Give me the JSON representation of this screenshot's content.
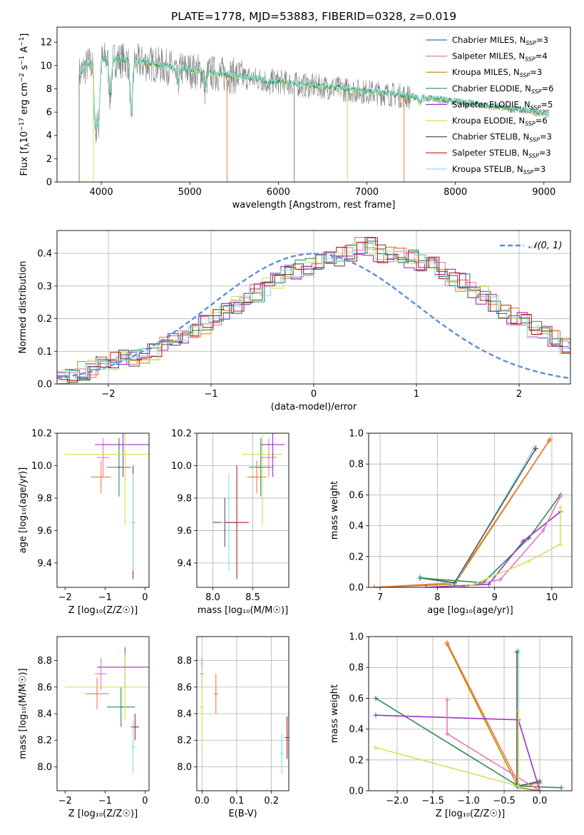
{
  "figure": {
    "title": "PLATE=1778, MJD=53883, FIBERID=0328, z=0.019"
  },
  "colors": {
    "chabrier_miles": "#4169e1",
    "salpeter_miles": "#e377c2",
    "kroupa_miles": "#b8860b",
    "chabrier_elodie": "#2e8b57",
    "salpeter_elodie": "#9932cc",
    "kroupa_elodie": "#d4e157",
    "chabrier_stelib": "#555555",
    "salpeter_stelib": "#b22222",
    "kroupa_stelib": "#80deea",
    "data": "#808080",
    "orange": "#ed7d31",
    "normal": "#5b8fd9"
  },
  "chart_data": [
    {
      "type": "line",
      "id": "spectrum",
      "xlabel": "wavelength [Angstrom, rest frame]",
      "ylabel_parts": [
        "Flux [f",
        "λ",
        "10",
        "−17",
        " erg cm",
        "−2",
        " s",
        "−1",
        " A",
        "−1",
        "]"
      ],
      "xlim": [
        3500,
        9300
      ],
      "ylim": [
        0,
        13.3
      ],
      "xticks": [
        4000,
        5000,
        6000,
        7000,
        8000,
        9000
      ],
      "yticks": [
        0,
        2,
        4,
        6,
        8,
        10,
        12
      ],
      "grid": false,
      "legend_position": "top-right",
      "legend": [
        {
          "text": "Chabrier MILES, N",
          "sub": "SSP",
          "tail": "=3",
          "color": "#4169e1"
        },
        {
          "text": "Salpeter MILES, N",
          "sub": "SSP",
          "tail": "=4",
          "color": "#e377c2"
        },
        {
          "text": "Kroupa MILES, N",
          "sub": "SSP",
          "tail": "=3",
          "color": "#b8860b"
        },
        {
          "text": "Chabrier ELODIE, N",
          "sub": "SSP",
          "tail": "=6",
          "color": "#2e8b57"
        },
        {
          "text": "Salpeter ELODIE, N",
          "sub": "SSP",
          "tail": "=5",
          "color": "#9932cc"
        },
        {
          "text": "Kroupa ELODIE, N",
          "sub": "SSP",
          "tail": "=6",
          "color": "#d4e157"
        },
        {
          "text": "Chabrier STELIB, N",
          "sub": "SSP",
          "tail": "=3",
          "color": "#555555"
        },
        {
          "text": "Salpeter STELIB, N",
          "sub": "SSP",
          "tail": "=3",
          "color": "#b22222"
        },
        {
          "text": "Kroupa STELIB, N",
          "sub": "SSP",
          "tail": "=3",
          "color": "#80deea"
        }
      ],
      "continuum": {
        "x": [
          3750,
          3850,
          3950,
          4050,
          4200,
          4400,
          4600,
          4800,
          5000,
          5200,
          5400,
          5600,
          5800,
          6000,
          6300,
          6600,
          6900,
          7200,
          7500,
          7800,
          8100,
          8400,
          8700,
          9000
        ],
        "y": [
          9.2,
          10.1,
          10.3,
          10.6,
          10.5,
          10.3,
          10.1,
          9.8,
          9.6,
          9.4,
          9.2,
          9.0,
          8.8,
          8.6,
          8.3,
          8.1,
          7.8,
          7.6,
          7.3,
          7.1,
          6.8,
          6.5,
          6.2,
          5.9
        ]
      },
      "absorption_dips": [
        {
          "x": 3933,
          "y": 4.5
        },
        {
          "x": 3968,
          "y": 5.0
        },
        {
          "x": 4101,
          "y": 7.5
        },
        {
          "x": 4340,
          "y": 5.5
        },
        {
          "x": 4861,
          "y": 8.5
        },
        {
          "x": 5175,
          "y": 8.0
        },
        {
          "x": 5890,
          "y": 8.0
        },
        {
          "x": 7600,
          "y": 6.8
        }
      ],
      "spikes_to_zero": [
        {
          "x": 3750,
          "y": 0.0,
          "series": "data"
        },
        {
          "x": 3910,
          "y": 0.0,
          "series": "kroupa_elodie"
        },
        {
          "x": 5420,
          "y": 0.0,
          "series": "orange"
        },
        {
          "x": 6180,
          "y": 0.0,
          "series": "data"
        },
        {
          "x": 6780,
          "y": 0.0,
          "series": "kroupa_elodie"
        },
        {
          "x": 7420,
          "y": 0.0,
          "series": "orange"
        }
      ]
    },
    {
      "type": "line",
      "id": "residuals",
      "xlabel": "(data-model)/error",
      "ylabel": "Normed distribution",
      "xlim": [
        -2.5,
        2.5
      ],
      "ylim": [
        0,
        0.47
      ],
      "xticks": [
        -2,
        -1,
        0,
        1,
        2
      ],
      "yticks": [
        0.0,
        0.1,
        0.2,
        0.3,
        0.4
      ],
      "grid": true,
      "legend_position": "top-right",
      "legend": {
        "label": "𝒩(0, 1)",
        "style": "dashed",
        "color": "#5b8fd9"
      },
      "histogram_bin_width": 0.1,
      "histogram_center": [
        0.03,
        0.03,
        0.04,
        0.05,
        0.06,
        0.07,
        0.08,
        0.08,
        0.09,
        0.1,
        0.12,
        0.13,
        0.14,
        0.16,
        0.18,
        0.2,
        0.22,
        0.24,
        0.26,
        0.28,
        0.3,
        0.32,
        0.34,
        0.35,
        0.36,
        0.37,
        0.38,
        0.39,
        0.4,
        0.42,
        0.42,
        0.4,
        0.39,
        0.39,
        0.38,
        0.37,
        0.36,
        0.35,
        0.33,
        0.31,
        0.29,
        0.27,
        0.25,
        0.23,
        0.21,
        0.19,
        0.17,
        0.15,
        0.14,
        0.12,
        0.1,
        0.09,
        0.08,
        0.07,
        0.06,
        0.05,
        0.04,
        0.04,
        0.03,
        0.03
      ]
    },
    {
      "type": "scatter",
      "id": "age_vs_Z",
      "xlabel": "Z [log₁₀(Z/Z☉)]",
      "ylabel": "age  [log₁₀(age/yr)]",
      "xlim": [
        -2.2,
        0.1
      ],
      "ylim": [
        9.25,
        10.2
      ],
      "xticks": [
        -2,
        -1,
        0
      ],
      "yticks": [
        9.4,
        9.6,
        9.8,
        10.0,
        10.2
      ],
      "grid": false,
      "points": [
        {
          "x": -1.1,
          "y": 9.93,
          "xerr": 0.25,
          "yerr": 0.1,
          "series": "orange"
        },
        {
          "x": -1.05,
          "y": 10.05,
          "xerr": 0.15,
          "yerr": 0.12,
          "series": "salpeter_miles"
        },
        {
          "x": -0.65,
          "y": 9.99,
          "xerr": 0.3,
          "yerr": 0.18,
          "series": "chabrier_elodie"
        },
        {
          "x": -0.55,
          "y": 10.13,
          "xerr": 0.7,
          "yerr": 0.2,
          "series": "salpeter_elodie"
        },
        {
          "x": -0.5,
          "y": 10.07,
          "xerr": 1.5,
          "yerr": 0.44,
          "series": "kroupa_elodie"
        },
        {
          "x": -0.3,
          "y": 9.65,
          "xerr": 0.05,
          "yerr": 0.35,
          "series": "salpeter_stelib"
        },
        {
          "x": -0.3,
          "y": 9.65,
          "xerr": 0.03,
          "yerr": 0.3,
          "series": "kroupa_stelib"
        }
      ]
    },
    {
      "type": "scatter",
      "id": "age_vs_mass",
      "xlabel": "mass [log₁₀(M/M☉)]",
      "ylabel": "",
      "xlim": [
        7.8,
        8.95
      ],
      "ylim": [
        9.25,
        10.2
      ],
      "xticks": [
        8.0,
        8.5
      ],
      "yticks": [
        9.4,
        9.6,
        9.8,
        10.0,
        10.2
      ],
      "grid": true,
      "points": [
        {
          "x": 8.15,
          "y": 9.65,
          "xerr": 0.15,
          "yerr": 0.15,
          "series": "chabrier_stelib"
        },
        {
          "x": 8.2,
          "y": 9.65,
          "xerr": 0.1,
          "yerr": 0.3,
          "series": "kroupa_stelib"
        },
        {
          "x": 8.3,
          "y": 9.65,
          "xerr": 0.15,
          "yerr": 0.35,
          "series": "salpeter_stelib"
        },
        {
          "x": 8.55,
          "y": 9.93,
          "xerr": 0.12,
          "yerr": 0.1,
          "series": "orange"
        },
        {
          "x": 8.6,
          "y": 9.99,
          "xerr": 0.15,
          "yerr": 0.18,
          "series": "chabrier_elodie"
        },
        {
          "x": 8.62,
          "y": 10.07,
          "xerr": 0.25,
          "yerr": 0.44,
          "series": "kroupa_elodie"
        },
        {
          "x": 8.7,
          "y": 10.05,
          "xerr": 0.1,
          "yerr": 0.12,
          "series": "salpeter_miles"
        },
        {
          "x": 8.75,
          "y": 10.13,
          "xerr": 0.15,
          "yerr": 0.2,
          "series": "salpeter_elodie"
        }
      ]
    },
    {
      "type": "line",
      "id": "massweight_vs_age",
      "xlabel": "age  [log₁₀(age/yr)]",
      "ylabel": "mass weight",
      "xlim": [
        6.8,
        10.35
      ],
      "ylim": [
        0,
        1.0
      ],
      "xticks": [
        7,
        8,
        9,
        10
      ],
      "yticks": [
        0.0,
        0.2,
        0.4,
        0.6,
        0.8,
        1.0
      ],
      "grid": true,
      "series": [
        {
          "name": "",
          "color": "#b8860b",
          "x": [
            6.9,
            8.3,
            9.95
          ],
          "y": [
            0.0,
            0.02,
            0.95
          ]
        },
        {
          "name": "",
          "color": "#ed7d31",
          "x": [
            6.9,
            8.3,
            9.97
          ],
          "y": [
            0.0,
            0.03,
            0.96
          ]
        },
        {
          "name": "",
          "color": "#80deea",
          "x": [
            7.7,
            8.3,
            9.7
          ],
          "y": [
            0.07,
            0.02,
            0.91
          ]
        },
        {
          "name": "",
          "color": "#555555",
          "x": [
            7.7,
            8.3,
            9.72
          ],
          "y": [
            0.06,
            0.03,
            0.9
          ]
        },
        {
          "name": "",
          "color": "#2e8b57",
          "x": [
            7.7,
            8.8,
            9.6,
            10.15
          ],
          "y": [
            0.06,
            0.03,
            0.32,
            0.6
          ]
        },
        {
          "name": "",
          "color": "#9932cc",
          "x": [
            7.8,
            8.9,
            9.5,
            10.15
          ],
          "y": [
            0.0,
            0.02,
            0.3,
            0.49
          ]
        },
        {
          "name": "",
          "color": "#e377c2",
          "x": [
            8.4,
            9.1,
            9.85,
            10.15
          ],
          "y": [
            0.0,
            0.05,
            0.37,
            0.59
          ]
        },
        {
          "name": "",
          "color": "#d4e157",
          "x": [
            8.5,
            9.6,
            10.15,
            10.15
          ],
          "y": [
            0.0,
            0.17,
            0.28,
            0.52
          ]
        }
      ]
    },
    {
      "type": "scatter",
      "id": "mass_vs_Z",
      "xlabel": "Z [log₁₀(Z/Z☉)]",
      "ylabel": "mass [log₁₀(M/M☉)]",
      "xlim": [
        -2.2,
        0.1
      ],
      "ylim": [
        7.82,
        8.98
      ],
      "xticks": [
        -2,
        -1,
        0
      ],
      "yticks": [
        8.0,
        8.2,
        8.4,
        8.6,
        8.8
      ],
      "grid": false,
      "points": [
        {
          "x": -1.2,
          "y": 8.55,
          "xerr": 0.3,
          "yerr": 0.12,
          "series": "orange"
        },
        {
          "x": -1.1,
          "y": 8.7,
          "xerr": 0.15,
          "yerr": 0.12,
          "series": "salpeter_miles"
        },
        {
          "x": -0.6,
          "y": 8.45,
          "xerr": 0.35,
          "yerr": 0.15,
          "series": "chabrier_elodie"
        },
        {
          "x": -0.5,
          "y": 8.75,
          "xerr": 0.7,
          "yerr": 0.15,
          "series": "salpeter_elodie"
        },
        {
          "x": -0.5,
          "y": 8.6,
          "xerr": 1.5,
          "yerr": 0.25,
          "series": "kroupa_elodie"
        },
        {
          "x": -0.25,
          "y": 8.3,
          "xerr": 0.1,
          "yerr": 0.1,
          "series": "salpeter_stelib"
        },
        {
          "x": -0.3,
          "y": 8.15,
          "xerr": 0.05,
          "yerr": 0.2,
          "series": "kroupa_stelib"
        }
      ]
    },
    {
      "type": "scatter",
      "id": "mass_vs_ebv",
      "xlabel": "E(B-V)",
      "ylabel": "",
      "xlim": [
        -0.015,
        0.25
      ],
      "ylim": [
        7.82,
        8.98
      ],
      "xticks": [
        0.0,
        0.1,
        0.2
      ],
      "yticks": [
        8.0,
        8.2,
        8.4,
        8.6,
        8.8
      ],
      "grid": true,
      "points": [
        {
          "x": 0.0,
          "y": 8.7,
          "yerr": 0.12,
          "series": "salpeter_miles"
        },
        {
          "x": 0.0,
          "y": 8.45,
          "yerr": 0.3,
          "series": "kroupa_elodie"
        },
        {
          "x": 0.04,
          "y": 8.55,
          "yerr": 0.15,
          "series": "orange"
        },
        {
          "x": 0.23,
          "y": 8.1,
          "yerr": 0.15,
          "series": "kroupa_stelib"
        },
        {
          "x": 0.245,
          "y": 8.22,
          "yerr": 0.16,
          "series": "salpeter_stelib"
        }
      ]
    },
    {
      "type": "line",
      "id": "massweight_vs_Z",
      "xlabel": "Z [log₁₀(Z/Z☉)]",
      "ylabel": "mass weight",
      "xlim": [
        -2.4,
        0.45
      ],
      "ylim": [
        0,
        1.0
      ],
      "xticks": [
        -2.0,
        -1.5,
        -1.0,
        -0.5,
        0.0
      ],
      "yticks": [
        0.0,
        0.2,
        0.4,
        0.6,
        0.8,
        1.0
      ],
      "grid": true,
      "series": [
        {
          "name": "",
          "color": "#b8860b",
          "x": [
            -1.3,
            -0.3,
            0.0
          ],
          "y": [
            0.95,
            0.02,
            0.0
          ]
        },
        {
          "name": "",
          "color": "#ed7d31",
          "x": [
            -1.3,
            -0.28,
            0.0
          ],
          "y": [
            0.96,
            0.03,
            0.05
          ]
        },
        {
          "name": "",
          "color": "#80deea",
          "x": [
            -0.3,
            -0.3,
            0.0
          ],
          "y": [
            0.91,
            0.02,
            0.07
          ]
        },
        {
          "name": "",
          "color": "#555555",
          "x": [
            -0.32,
            -0.32,
            0.0
          ],
          "y": [
            0.9,
            0.03,
            0.06
          ]
        },
        {
          "name": "",
          "color": "#2e8b57",
          "x": [
            -2.3,
            -0.3,
            0.3
          ],
          "y": [
            0.6,
            0.03,
            0.02
          ]
        },
        {
          "name": "",
          "color": "#9932cc",
          "x": [
            -2.3,
            -0.3,
            0.0
          ],
          "y": [
            0.49,
            0.46,
            0.0
          ]
        },
        {
          "name": "",
          "color": "#e377c2",
          "x": [
            -1.3,
            -1.3,
            0.0
          ],
          "y": [
            0.59,
            0.37,
            0.0
          ]
        },
        {
          "name": "",
          "color": "#d4e157",
          "x": [
            -2.3,
            -0.3,
            -0.3
          ],
          "y": [
            0.28,
            0.03,
            0.52
          ]
        }
      ]
    }
  ]
}
